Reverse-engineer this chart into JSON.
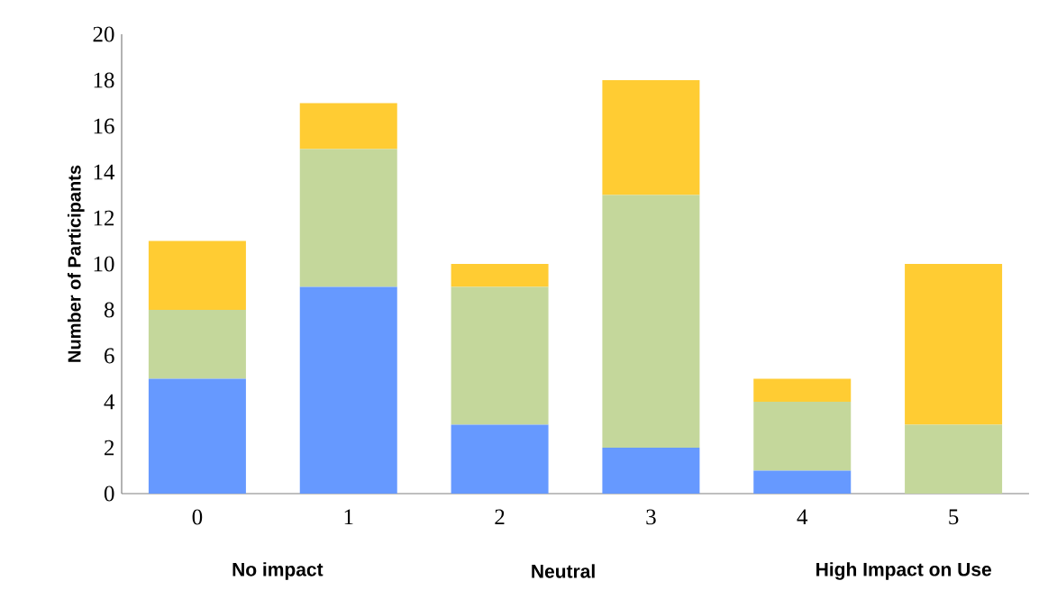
{
  "chart_data": {
    "type": "bar",
    "stacked": true,
    "ylabel": "Number  of Participants",
    "categories": [
      "0",
      "1",
      "2",
      "3",
      "4",
      "5"
    ],
    "series": [
      {
        "color": "#6699ff",
        "values": [
          5,
          9,
          3,
          2,
          1,
          0
        ]
      },
      {
        "color": "#c4d79b",
        "values": [
          3,
          6,
          6,
          11,
          3,
          3
        ]
      },
      {
        "color": "#ffcc33",
        "values": [
          3,
          2,
          1,
          5,
          1,
          7
        ]
      }
    ],
    "ylim": [
      0,
      20
    ],
    "yticks": [
      0,
      2,
      4,
      6,
      8,
      10,
      12,
      14,
      16,
      18,
      20
    ],
    "annotations": [
      "No impact",
      "Neutral",
      "High Impact on Use"
    ],
    "grid": false
  }
}
